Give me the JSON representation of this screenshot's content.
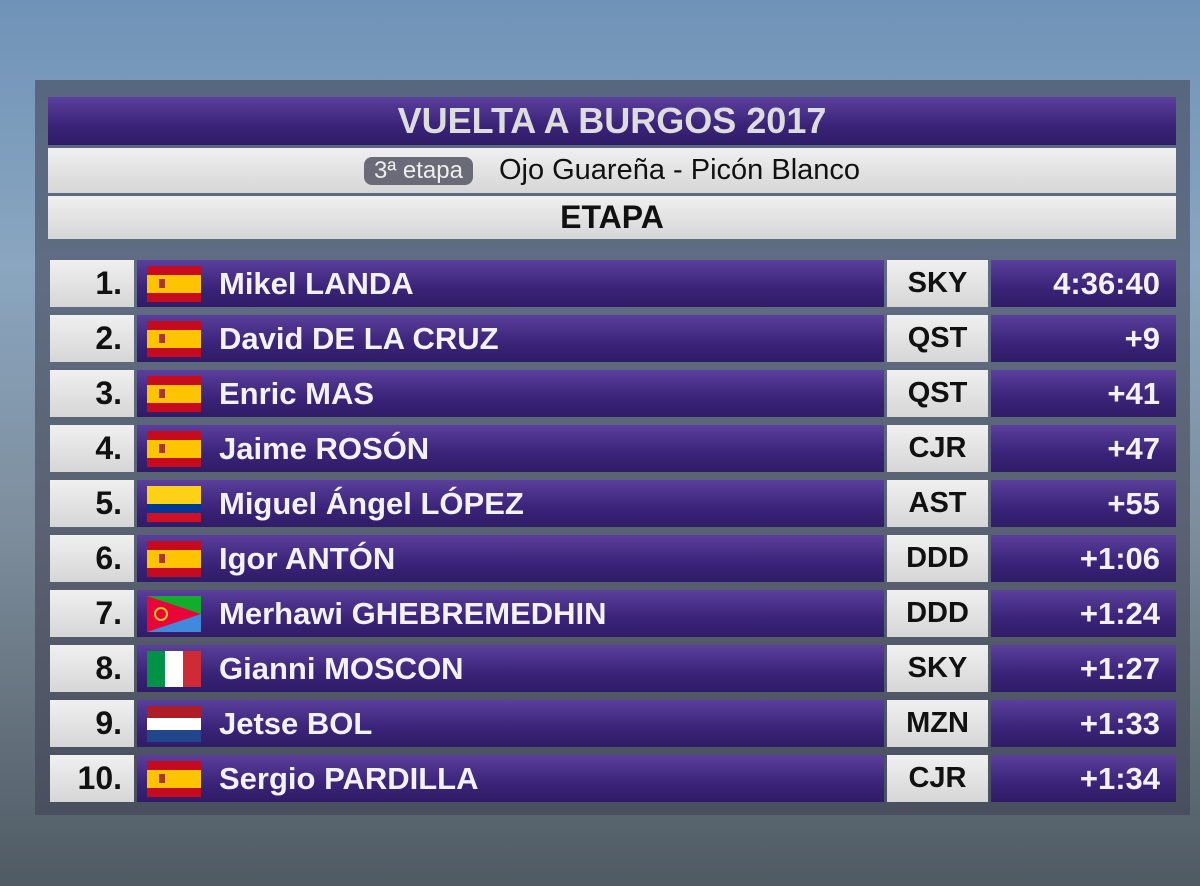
{
  "header": {
    "title": "VUELTA A BURGOS 2017",
    "stage_badge": "3ª etapa",
    "route": "Ojo Guareña - Picón Blanco",
    "section": "ETAPA"
  },
  "table": {
    "rows": [
      [
        "1.",
        "Mikel LANDA",
        "SKY",
        "4:36:40"
      ],
      [
        "2.",
        "David DE LA CRUZ",
        "QST",
        "+9"
      ],
      [
        "3.",
        "Enric MAS",
        "QST",
        "+41"
      ],
      [
        "4.",
        "Jaime ROSÓN",
        "CJR",
        "+47"
      ],
      [
        "5.",
        "Miguel Ángel LÓPEZ",
        "AST",
        "+55"
      ],
      [
        "6.",
        "Igor ANTÓN",
        "DDD",
        "+1:06"
      ],
      [
        "7.",
        "Merhawi GHEBREMEDHIN",
        "DDD",
        "+1:24"
      ],
      [
        "8.",
        "Gianni MOSCON",
        "SKY",
        "+1:27"
      ],
      [
        "9.",
        "Jetse BOL",
        "MZN",
        "+1:33"
      ],
      [
        "10.",
        "Sergio PARDILLA",
        "CJR",
        "+1:34"
      ]
    ]
  }
}
